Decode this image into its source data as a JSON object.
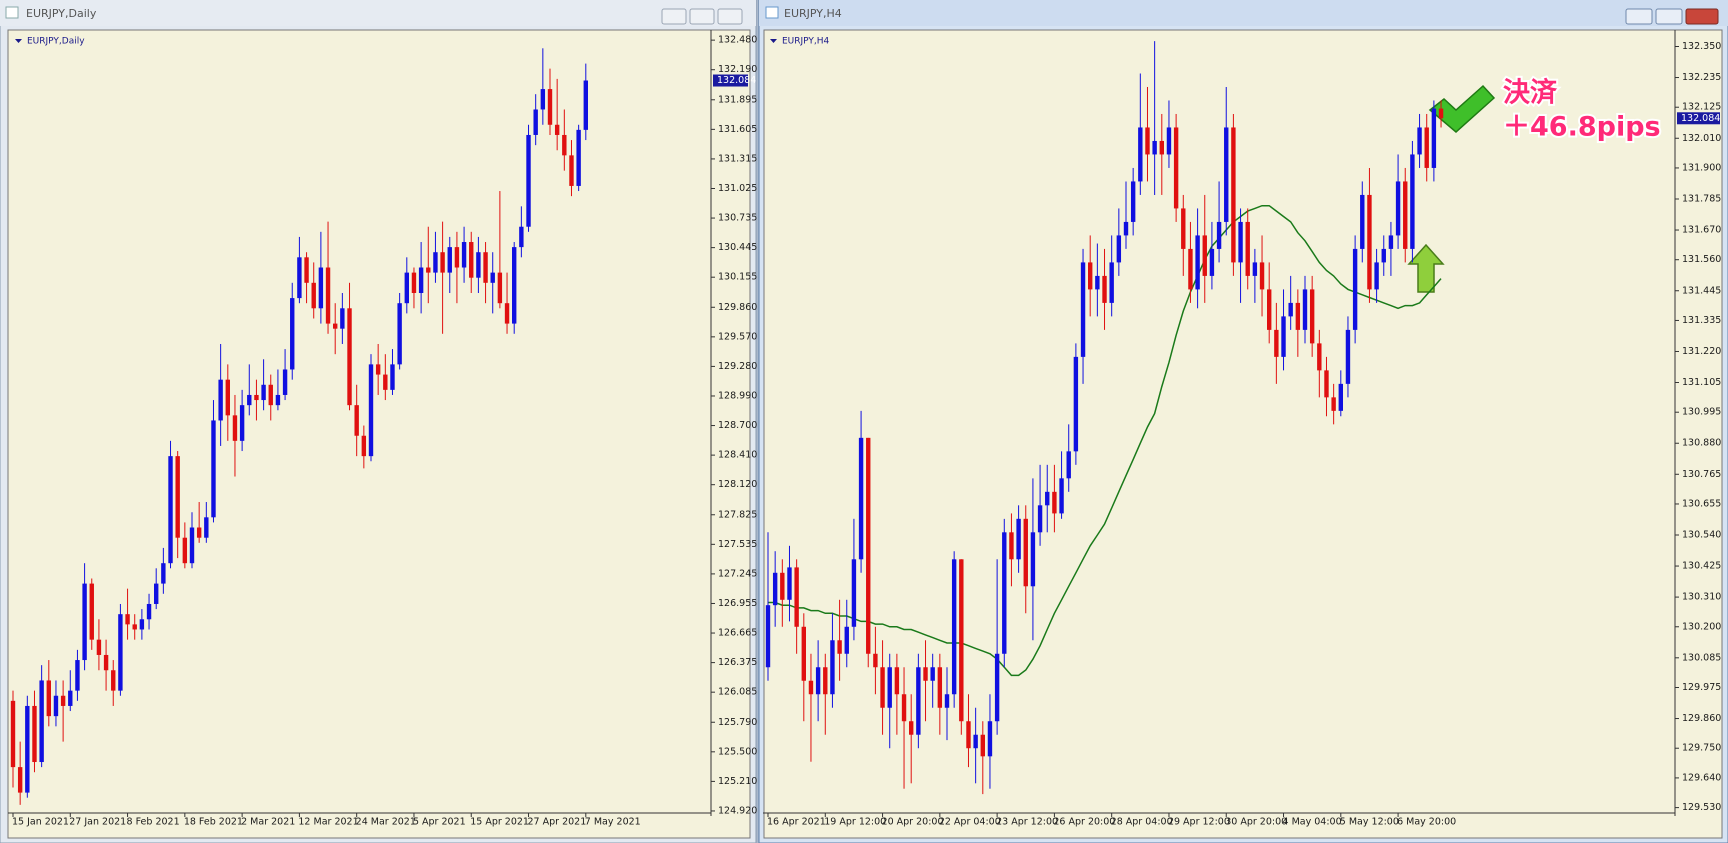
{
  "chart_data": [
    {
      "type": "candlestick",
      "window_title": "EURJPY,Daily",
      "title": "EURJPY,Daily",
      "up_color": "#1010e0",
      "down_color": "#e01010",
      "categories": [
        "15 Jan 2021",
        null,
        null,
        null,
        null,
        null,
        null,
        null,
        "27 Jan 2021",
        null,
        null,
        null,
        null,
        null,
        null,
        null,
        "8 Feb 2021",
        null,
        null,
        null,
        null,
        null,
        null,
        null,
        "18 Feb 2021",
        null,
        null,
        null,
        null,
        null,
        null,
        null,
        "2 Mar 2021",
        null,
        null,
        null,
        null,
        null,
        null,
        null,
        "12 Mar 2021",
        null,
        null,
        null,
        null,
        null,
        null,
        null,
        "24 Mar 2021",
        null,
        null,
        null,
        null,
        null,
        null,
        null,
        "5 Apr 2021",
        null,
        null,
        null,
        null,
        null,
        null,
        null,
        "15 Apr 2021",
        null,
        null,
        null,
        null,
        null,
        null,
        null,
        "27 Apr 2021",
        null,
        null,
        null,
        null,
        null,
        null,
        null,
        "7 May 2021"
      ],
      "open": [
        126.0,
        125.35,
        125.1,
        125.95,
        125.4,
        126.2,
        125.85,
        126.05,
        125.95,
        126.1,
        126.4,
        127.15,
        126.6,
        126.45,
        126.3,
        126.1,
        126.85,
        126.75,
        126.7,
        126.8,
        126.95,
        127.15,
        127.35,
        128.4,
        127.6,
        127.35,
        127.7,
        127.6,
        127.8,
        128.75,
        129.15,
        128.8,
        128.55,
        128.9,
        129.0,
        128.95,
        129.1,
        128.9,
        129.0,
        129.25,
        129.95,
        130.35,
        130.1,
        129.85,
        130.25,
        129.7,
        129.65,
        129.85,
        128.9,
        128.6,
        128.4,
        129.3,
        129.2,
        129.05,
        129.3,
        129.9,
        130.2,
        130.0,
        130.25,
        130.2,
        130.4,
        130.2,
        130.45,
        130.25,
        130.5,
        130.15,
        130.4,
        130.1,
        130.2,
        129.9,
        129.7,
        130.45,
        130.65,
        131.55,
        131.8,
        132.0,
        131.65,
        131.55,
        131.35,
        131.05,
        131.6
      ],
      "high": [
        126.1,
        125.6,
        126.05,
        126.1,
        126.35,
        126.4,
        126.2,
        126.2,
        126.3,
        126.5,
        127.35,
        127.2,
        126.8,
        126.6,
        126.4,
        126.95,
        127.1,
        126.85,
        126.9,
        127.05,
        127.3,
        127.5,
        128.55,
        128.45,
        127.75,
        127.85,
        127.95,
        127.95,
        128.95,
        129.5,
        129.3,
        129.0,
        129.05,
        129.3,
        129.15,
        129.35,
        129.2,
        129.25,
        129.45,
        130.1,
        130.55,
        130.4,
        130.3,
        130.6,
        130.7,
        129.9,
        130.0,
        130.1,
        129.1,
        128.7,
        129.4,
        129.5,
        129.4,
        129.45,
        130.0,
        130.35,
        130.25,
        130.5,
        130.65,
        130.6,
        130.7,
        130.55,
        130.6,
        130.65,
        130.6,
        130.55,
        130.5,
        130.4,
        131.0,
        130.2,
        130.5,
        130.85,
        131.65,
        131.95,
        132.4,
        132.2,
        132.1,
        131.8,
        131.5,
        131.65,
        132.25
      ],
      "low": [
        125.15,
        124.98,
        125.05,
        125.3,
        125.35,
        125.75,
        125.75,
        125.6,
        125.9,
        126.0,
        126.3,
        126.5,
        126.3,
        126.1,
        125.95,
        126.05,
        126.6,
        126.6,
        126.6,
        126.7,
        126.9,
        127.05,
        127.3,
        127.4,
        127.3,
        127.3,
        127.55,
        127.55,
        127.75,
        128.5,
        128.55,
        128.2,
        128.45,
        128.8,
        128.75,
        128.85,
        128.75,
        128.85,
        128.95,
        129.15,
        129.9,
        129.9,
        129.75,
        129.7,
        129.6,
        129.4,
        129.5,
        128.85,
        128.4,
        128.28,
        128.35,
        129.0,
        128.95,
        129.0,
        129.25,
        129.8,
        129.85,
        129.8,
        129.9,
        130.1,
        129.6,
        130.0,
        129.9,
        130.1,
        130.0,
        130.0,
        129.9,
        129.8,
        129.85,
        129.6,
        129.6,
        130.35,
        130.6,
        131.45,
        131.65,
        131.55,
        131.4,
        131.2,
        130.95,
        131.0,
        131.5
      ],
      "close": [
        125.35,
        125.1,
        125.95,
        125.4,
        126.2,
        125.85,
        126.05,
        125.95,
        126.1,
        126.4,
        127.15,
        126.6,
        126.45,
        126.3,
        126.1,
        126.85,
        126.75,
        126.7,
        126.8,
        126.95,
        127.15,
        127.35,
        128.4,
        127.6,
        127.35,
        127.7,
        127.6,
        127.8,
        128.75,
        129.15,
        128.8,
        128.55,
        128.9,
        129.0,
        128.95,
        129.1,
        128.9,
        129.0,
        129.25,
        129.95,
        130.35,
        130.1,
        129.85,
        130.25,
        129.7,
        129.65,
        129.85,
        128.9,
        128.6,
        128.4,
        129.3,
        129.2,
        129.05,
        129.3,
        129.9,
        130.2,
        130.0,
        130.25,
        130.2,
        130.4,
        130.2,
        130.45,
        130.25,
        130.5,
        130.15,
        130.4,
        130.1,
        130.2,
        129.9,
        129.7,
        130.45,
        130.65,
        131.55,
        131.8,
        132.0,
        131.65,
        131.55,
        131.35,
        131.05,
        131.6,
        132.084
      ],
      "current_price": 132.084,
      "ylim": [
        124.9,
        132.55
      ],
      "yticks": [
        {
          "value": 132.48,
          "label": "132.480"
        },
        {
          "value": 132.19,
          "label": "132.190"
        },
        131.895,
        131.605,
        131.315,
        131.025,
        130.735,
        130.445,
        130.155,
        {
          "value": 129.86,
          "label": "129.860"
        },
        {
          "value": 129.57,
          "label": "129.570"
        },
        {
          "value": 129.28,
          "label": "129.280"
        },
        {
          "value": 128.99,
          "label": "128.990"
        },
        {
          "value": 128.7,
          "label": "128.700"
        },
        {
          "value": 128.41,
          "label": "128.410"
        },
        {
          "value": 128.12,
          "label": "128.120"
        },
        127.825,
        127.535,
        127.245,
        126.955,
        126.665,
        126.375,
        126.085,
        {
          "value": 125.79,
          "label": "125.790"
        },
        {
          "value": 125.5,
          "label": "125.500"
        },
        {
          "value": 125.21,
          "label": "125.210"
        },
        {
          "value": 124.92,
          "label": "124.920"
        }
      ]
    },
    {
      "type": "candlestick",
      "window_title": "EURJPY,H4",
      "title": "EURJPY,H4",
      "up_color": "#1010e0",
      "down_color": "#e01010",
      "categories": [
        "16 Apr 2021",
        null,
        null,
        null,
        null,
        null,
        null,
        null,
        "19 Apr 12:00",
        null,
        null,
        null,
        null,
        null,
        null,
        null,
        "20 Apr 20:00",
        null,
        null,
        null,
        null,
        null,
        null,
        null,
        "22 Apr 04:00",
        null,
        null,
        null,
        null,
        null,
        null,
        null,
        "23 Apr 12:00",
        null,
        null,
        null,
        null,
        null,
        null,
        null,
        "26 Apr 20:00",
        null,
        null,
        null,
        null,
        null,
        null,
        null,
        "28 Apr 04:00",
        null,
        null,
        null,
        null,
        null,
        null,
        null,
        "29 Apr 12:00",
        null,
        null,
        null,
        null,
        null,
        null,
        null,
        "30 Apr 20:00",
        null,
        null,
        null,
        null,
        null,
        null,
        null,
        "4 May 04:00",
        null,
        null,
        null,
        null,
        null,
        null,
        null,
        "5 May 12:00",
        null,
        null,
        null,
        null,
        null,
        null,
        null,
        "6 May 20:00",
        null,
        null,
        null,
        null,
        null,
        null
      ],
      "open": [
        130.05,
        130.28,
        130.4,
        130.3,
        130.42,
        130.2,
        130.0,
        129.95,
        130.05,
        129.95,
        130.15,
        130.1,
        130.2,
        130.45,
        130.9,
        130.1,
        130.05,
        129.9,
        130.05,
        129.95,
        129.85,
        129.8,
        130.05,
        130.0,
        130.05,
        129.9,
        129.95,
        130.45,
        129.85,
        129.75,
        129.8,
        129.72,
        129.85,
        130.1,
        130.55,
        130.45,
        130.6,
        130.35,
        130.55,
        130.65,
        130.7,
        130.62,
        130.75,
        130.85,
        131.2,
        131.55,
        131.45,
        131.5,
        131.4,
        131.55,
        131.65,
        131.7,
        131.85,
        132.05,
        131.95,
        132.0,
        131.95,
        132.05,
        131.75,
        131.6,
        131.45,
        131.65,
        131.5,
        131.6,
        131.7,
        132.05,
        131.55,
        131.7,
        131.5,
        131.55,
        131.45,
        131.3,
        131.2,
        131.35,
        131.4,
        131.3,
        131.45,
        131.25,
        131.15,
        131.05,
        131.0,
        131.1,
        131.3,
        131.6,
        131.8,
        131.45,
        131.55,
        131.6,
        131.65,
        131.85,
        131.6,
        131.95,
        132.05,
        131.9,
        132.12
      ],
      "high": [
        130.55,
        130.48,
        130.45,
        130.5,
        130.45,
        130.25,
        130.1,
        130.15,
        130.1,
        130.25,
        130.3,
        130.3,
        130.6,
        131.0,
        130.9,
        130.2,
        130.15,
        130.1,
        130.1,
        130.05,
        129.95,
        130.1,
        130.15,
        130.1,
        130.1,
        130.05,
        130.48,
        130.45,
        129.95,
        129.9,
        129.85,
        129.95,
        130.45,
        130.6,
        130.62,
        130.65,
        130.65,
        130.75,
        130.8,
        130.8,
        130.8,
        130.85,
        130.95,
        131.25,
        131.6,
        131.65,
        131.62,
        131.6,
        131.65,
        131.75,
        131.85,
        131.9,
        132.25,
        132.2,
        132.37,
        132.1,
        132.15,
        132.1,
        131.8,
        131.7,
        131.75,
        131.8,
        131.7,
        131.85,
        132.2,
        132.1,
        131.75,
        131.75,
        131.6,
        131.65,
        131.55,
        131.4,
        131.45,
        131.5,
        131.45,
        131.5,
        131.5,
        131.3,
        131.2,
        131.1,
        131.15,
        131.35,
        131.65,
        131.85,
        131.9,
        131.6,
        131.65,
        131.7,
        131.95,
        131.9,
        132.0,
        132.1,
        132.1,
        132.15,
        132.15
      ],
      "low": [
        130.0,
        130.2,
        130.2,
        130.22,
        130.1,
        129.85,
        129.7,
        129.85,
        129.8,
        129.9,
        130.0,
        130.05,
        130.15,
        130.4,
        130.05,
        129.95,
        129.8,
        129.75,
        129.8,
        129.6,
        129.62,
        129.75,
        129.85,
        129.9,
        129.8,
        129.78,
        129.9,
        129.8,
        129.68,
        129.62,
        129.58,
        129.6,
        129.8,
        130.05,
        130.35,
        130.4,
        130.25,
        130.15,
        130.5,
        130.55,
        130.55,
        130.6,
        130.7,
        130.8,
        131.1,
        131.35,
        131.35,
        131.3,
        131.35,
        131.5,
        131.6,
        131.65,
        131.8,
        131.85,
        131.8,
        131.8,
        131.9,
        131.7,
        131.5,
        131.4,
        131.38,
        131.4,
        131.45,
        131.55,
        131.65,
        131.5,
        131.4,
        131.45,
        131.4,
        131.35,
        131.25,
        131.1,
        131.15,
        131.3,
        131.2,
        131.25,
        131.2,
        131.05,
        130.98,
        130.95,
        130.98,
        131.05,
        131.25,
        131.55,
        131.4,
        131.4,
        131.5,
        131.5,
        131.6,
        131.55,
        131.55,
        131.9,
        131.85,
        131.85,
        132.05
      ],
      "close": [
        130.28,
        130.4,
        130.3,
        130.42,
        130.2,
        130.0,
        129.95,
        130.05,
        129.95,
        130.15,
        130.1,
        130.2,
        130.45,
        130.9,
        130.1,
        130.05,
        129.9,
        130.05,
        129.95,
        129.85,
        129.8,
        130.05,
        130.0,
        130.05,
        129.9,
        129.95,
        130.45,
        129.85,
        129.75,
        129.8,
        129.72,
        129.85,
        130.1,
        130.55,
        130.45,
        130.6,
        130.35,
        130.55,
        130.65,
        130.7,
        130.62,
        130.75,
        130.85,
        131.2,
        131.55,
        131.45,
        131.5,
        131.4,
        131.55,
        131.65,
        131.7,
        131.85,
        132.05,
        131.95,
        132.0,
        131.95,
        132.05,
        131.75,
        131.6,
        131.45,
        131.65,
        131.5,
        131.6,
        131.7,
        132.05,
        131.55,
        131.7,
        131.5,
        131.55,
        131.45,
        131.3,
        131.2,
        131.35,
        131.4,
        131.3,
        131.45,
        131.25,
        131.15,
        131.05,
        131.0,
        131.1,
        131.3,
        131.6,
        131.8,
        131.45,
        131.55,
        131.6,
        131.65,
        131.85,
        131.6,
        131.95,
        132.05,
        131.9,
        132.12,
        132.084
      ],
      "ma": {
        "color": "#1a7a1a",
        "values": [
          130.29,
          130.29,
          130.28,
          130.28,
          130.27,
          130.27,
          130.26,
          130.26,
          130.25,
          130.25,
          130.24,
          130.24,
          130.23,
          130.22,
          130.22,
          130.21,
          130.21,
          130.2,
          130.2,
          130.19,
          130.19,
          130.18,
          130.17,
          130.16,
          130.15,
          130.14,
          130.14,
          130.14,
          130.13,
          130.12,
          130.11,
          130.1,
          130.08,
          130.05,
          130.02,
          130.02,
          130.04,
          130.08,
          130.13,
          130.19,
          130.25,
          130.3,
          130.35,
          130.4,
          130.45,
          130.5,
          130.54,
          130.58,
          130.64,
          130.7,
          130.76,
          130.82,
          130.88,
          130.94,
          130.99,
          131.09,
          131.18,
          131.28,
          131.37,
          131.44,
          131.5,
          131.56,
          131.61,
          131.64,
          131.67,
          131.7,
          131.72,
          131.74,
          131.75,
          131.76,
          131.76,
          131.74,
          131.72,
          131.7,
          131.66,
          131.63,
          131.59,
          131.55,
          131.52,
          131.5,
          131.47,
          131.45,
          131.44,
          131.43,
          131.42,
          131.41,
          131.4,
          131.39,
          131.38,
          131.39,
          131.39,
          131.4,
          131.43,
          131.46,
          131.49
        ]
      },
      "current_price": 132.084,
      "annotations": [
        "決済",
        "＋46.8pips"
      ],
      "ylim": [
        129.51,
        132.4
      ],
      "yticks": [
        {
          "value": 132.35,
          "label": "132.350"
        },
        132.235,
        132.125,
        {
          "value": 132.01,
          "label": "132.010"
        },
        {
          "value": 131.9,
          "label": "131.900"
        },
        131.785,
        {
          "value": 131.67,
          "label": "131.670"
        },
        {
          "value": 131.56,
          "label": "131.560"
        },
        131.445,
        131.335,
        {
          "value": 131.22,
          "label": "131.220"
        },
        131.105,
        130.995,
        {
          "value": 130.88,
          "label": "130.880"
        },
        130.765,
        130.655,
        {
          "value": 130.54,
          "label": "130.540"
        },
        130.425,
        {
          "value": 130.31,
          "label": "130.310"
        },
        {
          "value": 130.2,
          "label": "130.200"
        },
        130.085,
        129.975,
        {
          "value": 129.86,
          "label": "129.860"
        },
        {
          "value": 129.75,
          "label": "129.750"
        },
        {
          "value": 129.64,
          "label": "129.640"
        },
        {
          "value": 129.53,
          "label": "129.530"
        }
      ]
    }
  ]
}
